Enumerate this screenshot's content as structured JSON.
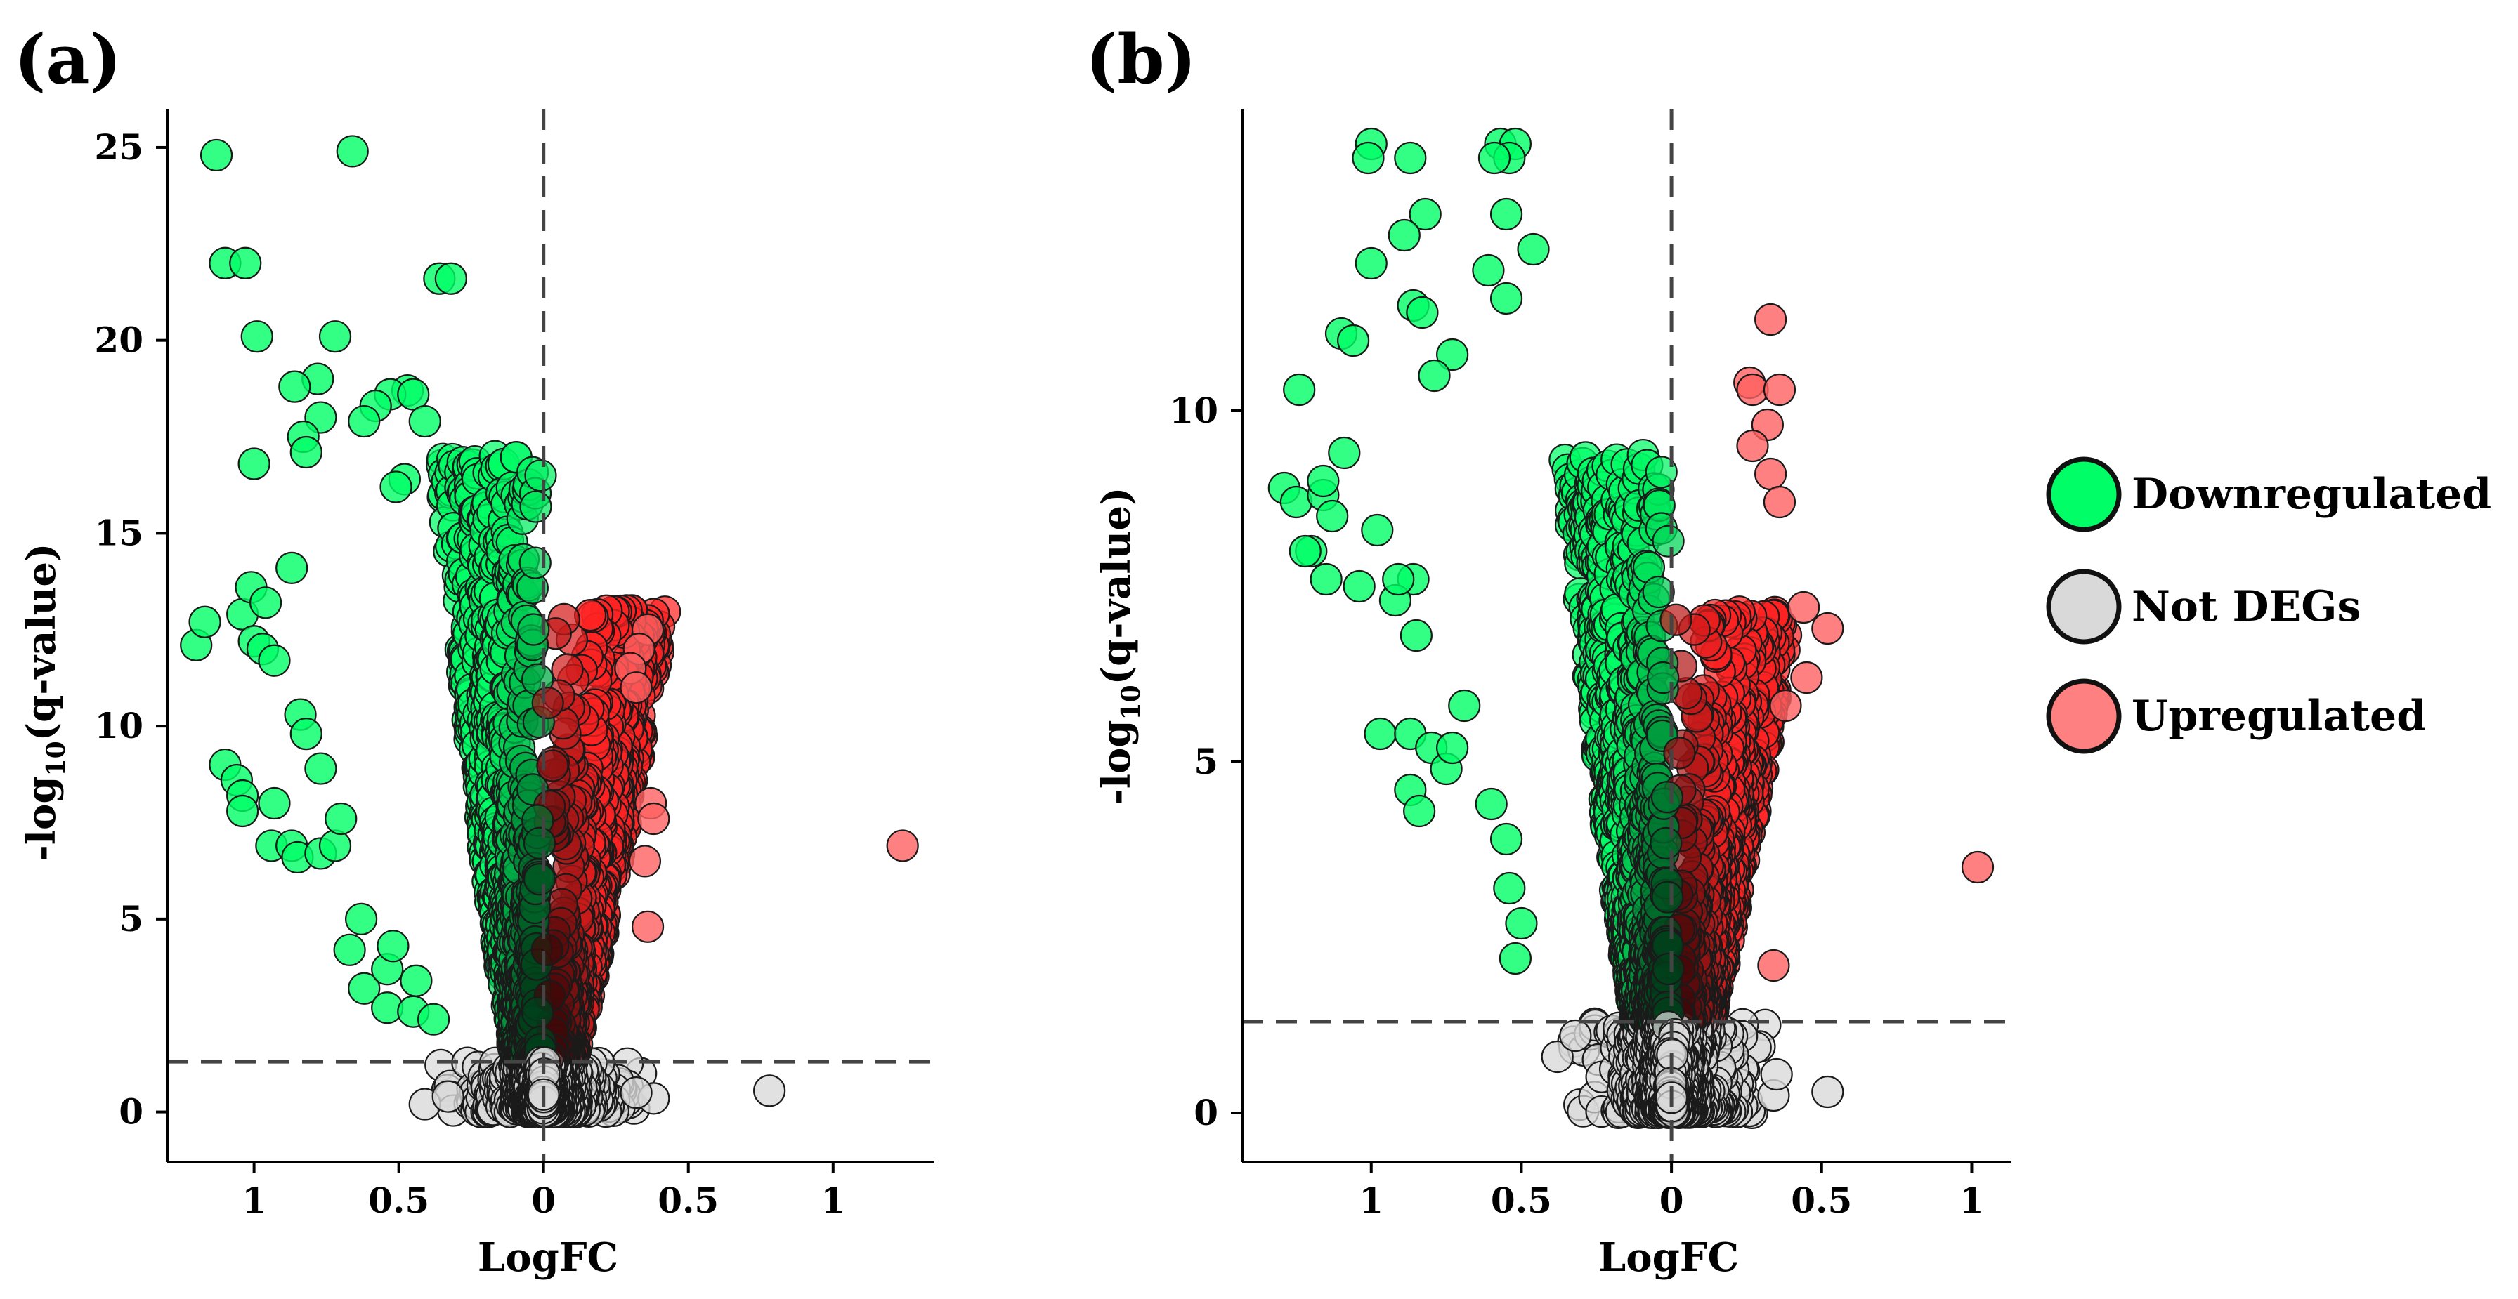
{
  "colors": {
    "downregulated": "#00ff66",
    "not_degs": "#d9d9d9",
    "upregulated": "#ff2222",
    "threshold": "#444444"
  },
  "legend": {
    "items": [
      {
        "key": "down",
        "label": "Downregulated",
        "color": "#00ff66"
      },
      {
        "key": "none",
        "label": "Not DEGs",
        "color": "#d9d9d9"
      },
      {
        "key": "up",
        "label": "Upregulated",
        "color": "#ff8080"
      }
    ]
  },
  "chart_data": [
    {
      "type": "scatter",
      "panel_label": "(a)",
      "title": "",
      "xlabel": "LogFC",
      "ylabel_prefix": "-log",
      "ylabel_sub": "10",
      "ylabel_suffix": "(q-value)",
      "xlim": [
        -1.3,
        1.35
      ],
      "ylim": [
        -1.3,
        26
      ],
      "x_ticks": [
        {
          "value": -1,
          "label": "1"
        },
        {
          "value": -0.5,
          "label": "0.5"
        },
        {
          "value": 0,
          "label": "0"
        },
        {
          "value": 0.5,
          "label": "0.5"
        },
        {
          "value": 1,
          "label": "1"
        }
      ],
      "y_ticks": [
        {
          "value": 0,
          "label": "0"
        },
        {
          "value": 5,
          "label": "5"
        },
        {
          "value": 10,
          "label": "10"
        },
        {
          "value": 15,
          "label": "15"
        },
        {
          "value": 20,
          "label": "20"
        },
        {
          "value": 25,
          "label": "25"
        }
      ],
      "fc_cutoff": 0,
      "q_cutoff_neglog10": 1.3,
      "seed": 11,
      "cloud": {
        "down_max_x": 1.25,
        "up_max_x": 0.4,
        "ymax": 25,
        "n_down": 720,
        "n_up": 520,
        "n_none": 420
      },
      "series": [
        {
          "name": "Downregulated",
          "points": [
            [
              -1.13,
              24.8
            ],
            [
              -0.66,
              24.9
            ],
            [
              -1.1,
              22.0
            ],
            [
              -1.03,
              22.0
            ],
            [
              -0.36,
              21.6
            ],
            [
              -0.99,
              20.1
            ],
            [
              -0.72,
              20.1
            ],
            [
              -0.78,
              19.0
            ],
            [
              -0.86,
              18.8
            ],
            [
              -0.47,
              18.7
            ],
            [
              -0.53,
              18.6
            ],
            [
              -0.45,
              18.6
            ],
            [
              -0.58,
              18.3
            ],
            [
              -0.77,
              18.0
            ],
            [
              -0.62,
              17.9
            ],
            [
              -0.41,
              17.9
            ],
            [
              -0.83,
              17.5
            ],
            [
              -0.82,
              17.1
            ],
            [
              -1.0,
              16.8
            ],
            [
              -0.48,
              16.4
            ],
            [
              -0.51,
              16.2
            ],
            [
              -1.2,
              12.1
            ],
            [
              -1.17,
              12.7
            ],
            [
              -1.04,
              12.9
            ],
            [
              -1.0,
              12.2
            ],
            [
              -0.97,
              12.0
            ],
            [
              -0.93,
              11.7
            ],
            [
              -1.01,
              13.6
            ],
            [
              -0.96,
              13.2
            ],
            [
              -0.87,
              14.1
            ],
            [
              -1.1,
              9.0
            ],
            [
              -1.06,
              8.6
            ],
            [
              -1.04,
              8.2
            ],
            [
              -1.04,
              7.8
            ],
            [
              -0.93,
              8.0
            ],
            [
              -0.94,
              6.9
            ],
            [
              -0.87,
              6.9
            ],
            [
              -0.85,
              6.6
            ],
            [
              -0.77,
              6.7
            ],
            [
              -0.72,
              6.9
            ],
            [
              -0.7,
              7.6
            ],
            [
              -0.84,
              10.3
            ],
            [
              -0.82,
              9.8
            ],
            [
              -0.77,
              8.9
            ],
            [
              -0.62,
              3.2
            ],
            [
              -0.54,
              3.7
            ],
            [
              -0.54,
              2.7
            ],
            [
              -0.45,
              2.6
            ],
            [
              -0.44,
              3.4
            ],
            [
              -0.38,
              2.4
            ],
            [
              -0.67,
              4.2
            ],
            [
              -0.63,
              5.0
            ],
            [
              -0.52,
              4.3
            ],
            [
              -0.32,
              21.6
            ]
          ]
        },
        {
          "name": "Not DEGs",
          "points": [
            [
              0.78,
              0.55
            ],
            [
              -0.41,
              0.2
            ],
            [
              0.38,
              0.35
            ],
            [
              -0.33,
              0.4
            ],
            [
              0.32,
              0.5
            ]
          ]
        },
        {
          "name": "Upregulated",
          "points": [
            [
              1.24,
              6.9
            ],
            [
              0.36,
              12.5
            ],
            [
              0.33,
              12.0
            ],
            [
              0.3,
              11.5
            ],
            [
              0.37,
              8.0
            ],
            [
              0.38,
              7.6
            ],
            [
              0.36,
              4.8
            ],
            [
              0.35,
              6.5
            ],
            [
              0.32,
              11.0
            ]
          ]
        }
      ]
    },
    {
      "type": "scatter",
      "panel_label": "(b)",
      "title": "",
      "xlabel": "LogFC",
      "ylabel_prefix": "-log",
      "ylabel_sub": "10",
      "ylabel_suffix": "(q-value)",
      "xlim": [
        -1.43,
        1.13
      ],
      "ylim": [
        -0.7,
        14.3
      ],
      "x_ticks": [
        {
          "value": -1,
          "label": "1"
        },
        {
          "value": -0.5,
          "label": "0.5"
        },
        {
          "value": 0,
          "label": "0"
        },
        {
          "value": 0.5,
          "label": "0.5"
        },
        {
          "value": 1,
          "label": "1"
        }
      ],
      "y_ticks": [
        {
          "value": 0,
          "label": "0"
        },
        {
          "value": 5,
          "label": "5"
        },
        {
          "value": 10,
          "label": "10"
        }
      ],
      "fc_cutoff": 0,
      "q_cutoff_neglog10": 1.3,
      "seed": 29,
      "cloud": {
        "down_max_x": 1.3,
        "up_max_x": 0.38,
        "ymax": 13.8,
        "n_down": 760,
        "n_up": 520,
        "n_none": 430
      },
      "series": [
        {
          "name": "Downregulated",
          "points": [
            [
              -1.0,
              13.8
            ],
            [
              -0.57,
              13.8
            ],
            [
              -0.52,
              13.8
            ],
            [
              -0.54,
              13.6
            ],
            [
              -0.59,
              13.6
            ],
            [
              -1.01,
              13.6
            ],
            [
              -0.87,
              13.6
            ],
            [
              -0.82,
              12.8
            ],
            [
              -0.55,
              12.8
            ],
            [
              -0.89,
              12.5
            ],
            [
              -0.46,
              12.3
            ],
            [
              -1.0,
              12.1
            ],
            [
              -0.61,
              12.0
            ],
            [
              -0.55,
              11.6
            ],
            [
              -0.86,
              11.5
            ],
            [
              -0.83,
              11.4
            ],
            [
              -1.1,
              11.1
            ],
            [
              -1.06,
              11.0
            ],
            [
              -0.73,
              10.8
            ],
            [
              -0.79,
              10.5
            ],
            [
              -1.24,
              10.3
            ],
            [
              -1.09,
              9.4
            ],
            [
              -1.29,
              8.9
            ],
            [
              -1.25,
              8.7
            ],
            [
              -1.16,
              8.8
            ],
            [
              -1.13,
              8.5
            ],
            [
              -1.16,
              9.0
            ],
            [
              -1.2,
              8.0
            ],
            [
              -1.22,
              8.0
            ],
            [
              -1.15,
              7.6
            ],
            [
              -1.04,
              7.5
            ],
            [
              -0.98,
              8.3
            ],
            [
              -0.86,
              7.6
            ],
            [
              -0.92,
              7.3
            ],
            [
              -0.85,
              6.8
            ],
            [
              -0.91,
              7.6
            ],
            [
              -0.97,
              5.4
            ],
            [
              -0.87,
              5.4
            ],
            [
              -0.8,
              5.2
            ],
            [
              -0.87,
              4.6
            ],
            [
              -0.84,
              4.3
            ],
            [
              -0.75,
              4.9
            ],
            [
              -0.73,
              5.2
            ],
            [
              -0.69,
              5.8
            ],
            [
              -0.6,
              4.4
            ],
            [
              -0.55,
              3.9
            ],
            [
              -0.54,
              3.2
            ],
            [
              -0.52,
              2.2
            ],
            [
              -0.5,
              2.7
            ]
          ]
        },
        {
          "name": "Not DEGs",
          "points": [
            [
              0.52,
              0.3
            ],
            [
              -0.38,
              0.8
            ],
            [
              0.34,
              0.25
            ],
            [
              0.35,
              0.55
            ],
            [
              -0.32,
              1.1
            ]
          ]
        },
        {
          "name": "Upregulated",
          "points": [
            [
              1.02,
              3.5
            ],
            [
              0.33,
              11.3
            ],
            [
              0.26,
              10.4
            ],
            [
              0.27,
              10.3
            ],
            [
              0.36,
              10.3
            ],
            [
              0.32,
              9.8
            ],
            [
              0.33,
              9.1
            ],
            [
              0.36,
              8.7
            ],
            [
              0.44,
              7.2
            ],
            [
              0.52,
              6.9
            ],
            [
              0.45,
              6.2
            ],
            [
              0.38,
              5.8
            ],
            [
              0.34,
              2.1
            ],
            [
              0.27,
              9.5
            ]
          ]
        }
      ]
    }
  ]
}
